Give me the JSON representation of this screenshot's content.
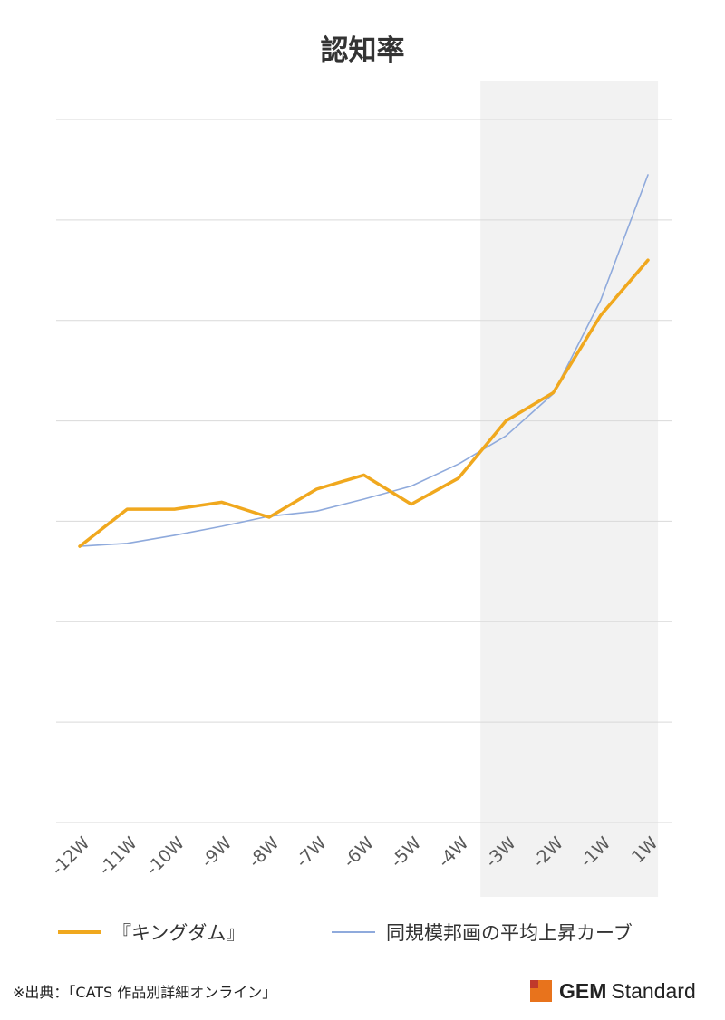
{
  "chart_data": {
    "type": "line",
    "title": "認知率",
    "categories": [
      "-12W",
      "-11W",
      "-10W",
      "-9W",
      "-8W",
      "-7W",
      "-6W",
      "-5W",
      "-4W",
      "-3W",
      "-2W",
      "-1W",
      "1W"
    ],
    "series": [
      {
        "name": "『キングダム』",
        "color": "#f0a81e",
        "values": [
          2.75,
          3.12,
          3.12,
          3.19,
          3.04,
          3.32,
          3.46,
          3.17,
          3.43,
          4.0,
          4.28,
          5.05,
          5.6
        ]
      },
      {
        "name": "同規模邦画の平均上昇カーブ",
        "color": "#8faadc",
        "values": [
          2.75,
          2.78,
          2.86,
          2.95,
          3.05,
          3.1,
          3.22,
          3.35,
          3.57,
          3.85,
          4.27,
          5.2,
          6.45
        ]
      }
    ],
    "ylim": [
      0,
      7
    ],
    "grid": true,
    "y_tick_labels_shown": false,
    "highlight_region": {
      "from": "-3W",
      "to": "1W",
      "color": "#f2f2f2"
    },
    "legend_placement": "bottom"
  },
  "footer": {
    "source": "※出典：「CATS 作品別詳細オンライン」",
    "brand_strong": "GEM",
    "brand_light": "Standard",
    "brand_color": "#e8731c"
  }
}
